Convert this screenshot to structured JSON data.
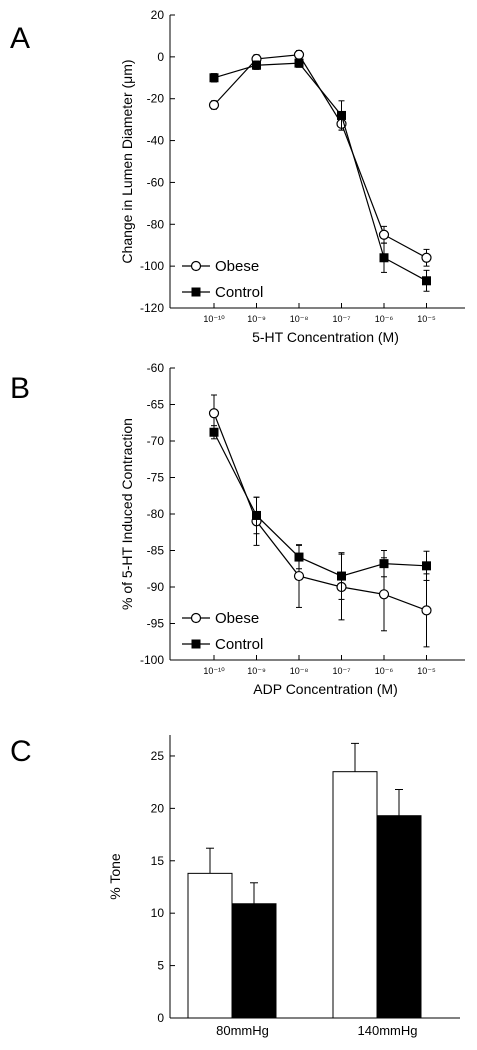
{
  "panels": {
    "a": {
      "label": "A"
    },
    "b": {
      "label": "B"
    },
    "c": {
      "label": "C"
    }
  },
  "chart_data": [
    {
      "type": "line",
      "title": "",
      "xlabel": "5-HT Concentration (M)",
      "ylabel": "Change in Lumen Diameter (μm)",
      "ylim": [
        -120,
        20
      ],
      "yticks": [
        20,
        0,
        -20,
        -40,
        -60,
        -80,
        -100,
        -120
      ],
      "categories": [
        "10⁻¹⁰",
        "10⁻⁹",
        "10⁻⁸",
        "10⁻⁷",
        "10⁻⁶",
        "10⁻⁵"
      ],
      "legend_position": "bottom-left",
      "series": [
        {
          "name": "Obese",
          "marker": "open-circle",
          "values": [
            -23,
            -1,
            1,
            -32,
            -85,
            -96
          ],
          "errors": [
            2,
            2,
            2,
            3,
            4,
            4
          ]
        },
        {
          "name": "Control",
          "marker": "filled-square",
          "values": [
            -10,
            -4,
            -3,
            -28,
            -96,
            -107
          ],
          "errors": [
            2,
            2,
            2,
            7,
            7,
            5
          ]
        }
      ]
    },
    {
      "type": "line",
      "title": "",
      "xlabel": "ADP Concentration (M)",
      "ylabel": "% of 5-HT Induced Contraction",
      "ylim": [
        -100,
        -60
      ],
      "yticks": [
        -60,
        -65,
        -70,
        -75,
        -80,
        -85,
        -90,
        -95,
        -100
      ],
      "categories": [
        "10⁻¹⁰",
        "10⁻⁹",
        "10⁻⁸",
        "10⁻⁷",
        "10⁻⁶",
        "10⁻⁵"
      ],
      "legend_position": "bottom-left",
      "series": [
        {
          "name": "Obese",
          "marker": "open-circle",
          "values": [
            -66.2,
            -81,
            -88.5,
            -90,
            -91,
            -93.2
          ],
          "errors": [
            2.5,
            3.3,
            4.3,
            4.5,
            5,
            5
          ]
        },
        {
          "name": "Control",
          "marker": "filled-square",
          "values": [
            -68.8,
            -80.2,
            -85.9,
            -88.5,
            -86.8,
            -87.1
          ],
          "errors": [
            0.9,
            2.5,
            1.6,
            3.2,
            1.8,
            2
          ]
        }
      ]
    },
    {
      "type": "bar",
      "title": "",
      "xlabel": "",
      "ylabel": "% Tone",
      "ylim": [
        0,
        27
      ],
      "yticks": [
        0,
        5,
        10,
        15,
        20,
        25
      ],
      "categories": [
        "80mmHg",
        "140mmHg"
      ],
      "series": [
        {
          "color": "#ffffff",
          "values": [
            13.8,
            23.5
          ],
          "errors": [
            2.4,
            2.7
          ]
        },
        {
          "color": "#000000",
          "values": [
            10.9,
            19.3
          ],
          "errors": [
            2.0,
            2.5
          ]
        }
      ]
    }
  ]
}
